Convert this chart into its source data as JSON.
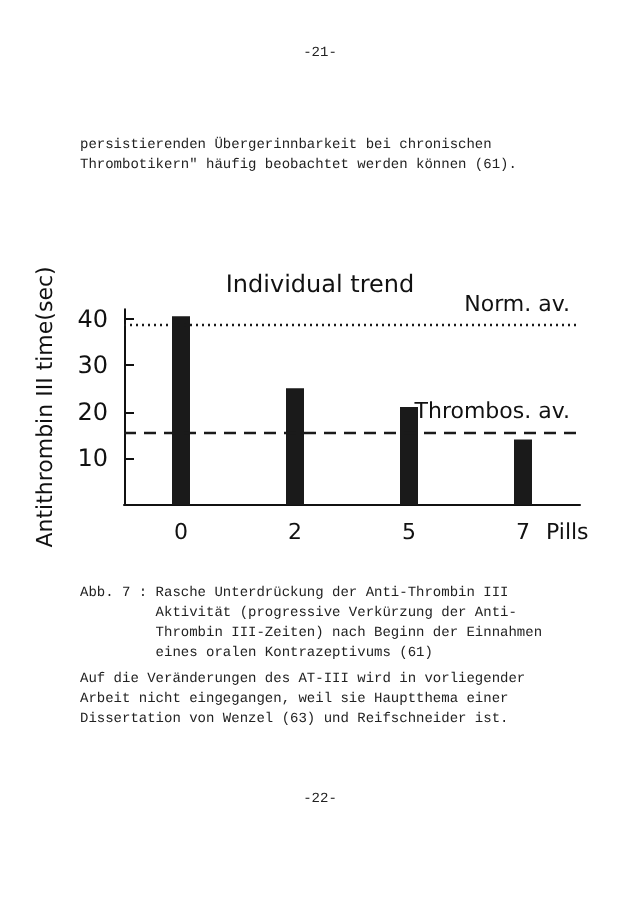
{
  "chart_data": {
    "type": "bar",
    "title": "Individual trend",
    "ylabel": "Antithrombin III time(sec)",
    "xlabel": "Pills",
    "categories": [
      "0",
      "2",
      "5",
      "7"
    ],
    "values": [
      40.5,
      25,
      21,
      14
    ],
    "color": "#1a1a1a",
    "ylim": [
      0,
      42
    ],
    "yticks": [
      10,
      20,
      30,
      40
    ],
    "grid": false,
    "ref_lines": [
      {
        "axis": "y",
        "value": 38.5,
        "label": "Norm. av.",
        "line_style": "dotted",
        "color": "#1a1a1a"
      },
      {
        "axis": "y",
        "value": 15.6,
        "label": "Thrombos. av.",
        "line_style": "dashed",
        "color": "#1a1a1a"
      }
    ],
    "annotations": [
      "-21-",
      "persistierenden Übergerinnbarkeit bei chronischen\nThrombotikern\" häufig beobachtet werden können (61).",
      "Abb. 7 : Rasche Unterdrückung der Anti-Thrombin III\n         Aktivität (progressive Verkürzung der Anti-\n         Thrombin III-Zeiten) nach Beginn der Einnahmen\n         eines oralen Kontrazeptivums (61)",
      "Auf die Veränderungen des AT-III wird in vorliegender\nArbeit nicht eingegangen, weil sie Hauptthema einer\nDissertation von Wenzel (63) und Reifschneider ist.",
      "-22-"
    ]
  }
}
